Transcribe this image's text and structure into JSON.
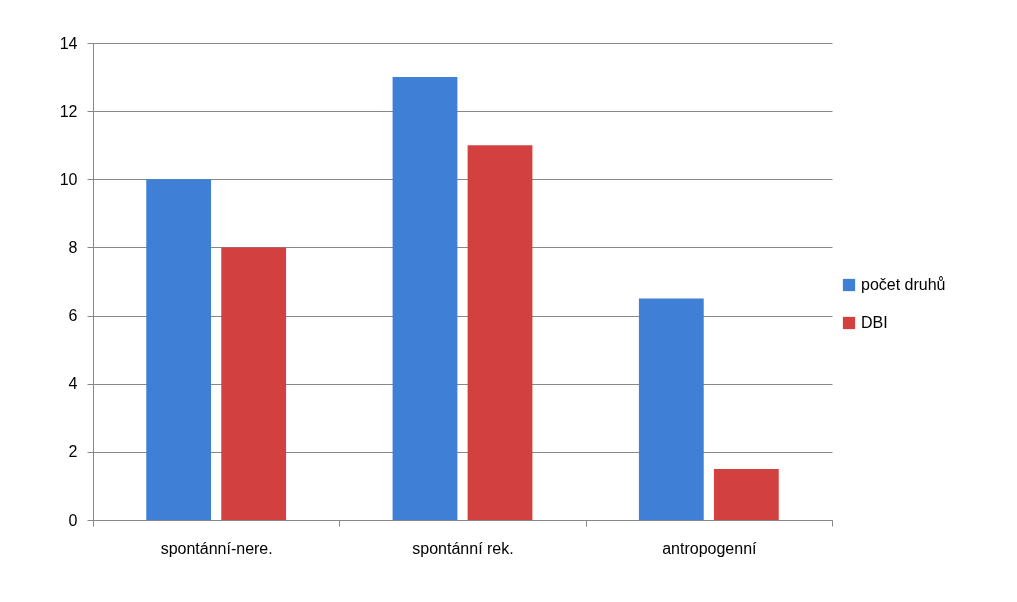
{
  "chart_data": {
    "type": "bar",
    "categories": [
      "spontánní-nere.",
      "spontánní rek.",
      "antropogenní"
    ],
    "series": [
      {
        "name": "počet druhů",
        "color": "#3f80d6",
        "values": [
          10,
          13,
          6.5
        ]
      },
      {
        "name": "DBI",
        "color": "#d24040",
        "values": [
          8,
          11,
          1.5
        ]
      }
    ],
    "ylim": [
      0,
      14
    ],
    "yticks": [
      0,
      2,
      4,
      6,
      8,
      10,
      12,
      14
    ],
    "grid": "y",
    "legend": "right"
  }
}
